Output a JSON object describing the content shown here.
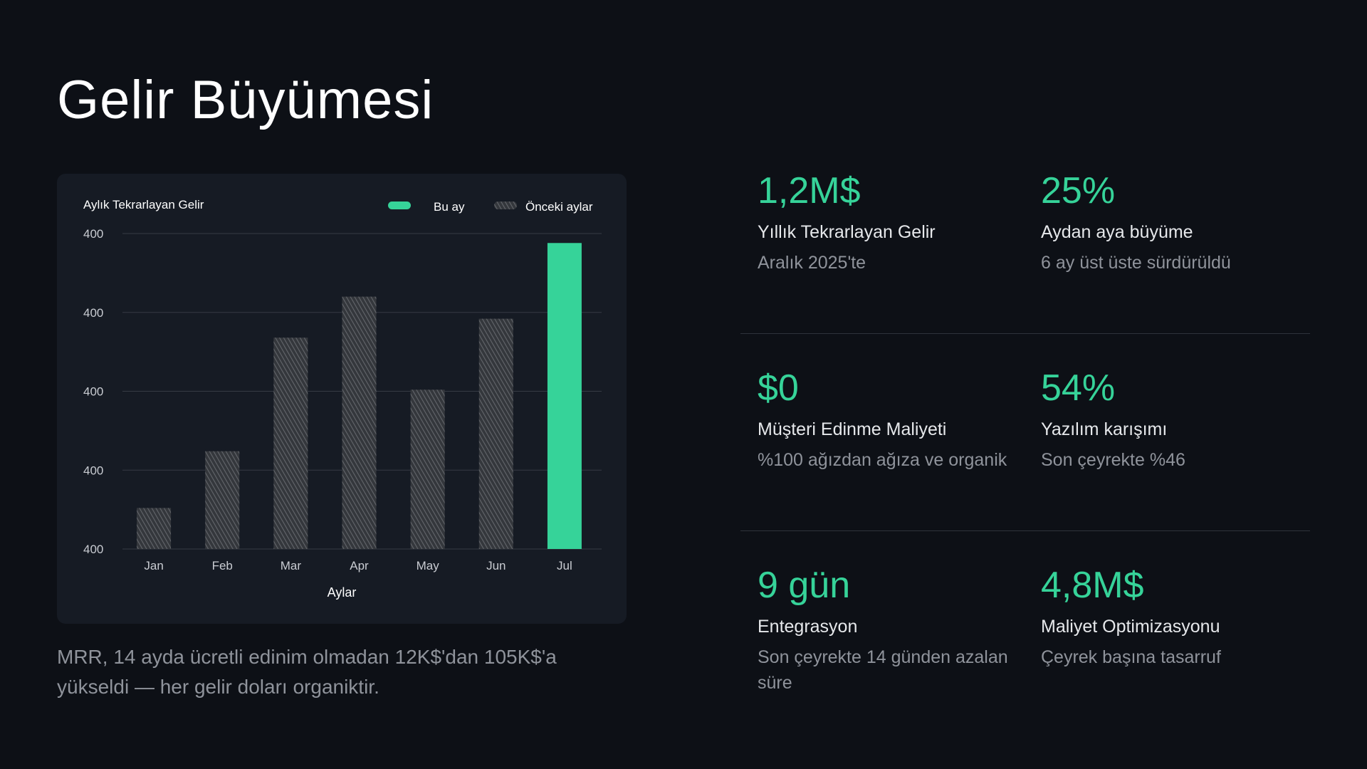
{
  "title": "Gelir Büyümesi",
  "caption": "MRR, 14 ayda ücretli edinim olmadan 12K$'dan 105K$'a yükseldi — her gelir doları organiktir.",
  "colors": {
    "background": "#0d1016",
    "card": "#161b24",
    "accent": "#36d399",
    "hatch": "#5c5f64"
  },
  "chart_data": {
    "type": "bar",
    "title": "Aylık Tekrarlayan Gelir",
    "xlabel": "Aylar",
    "ylabel": "",
    "legend": [
      {
        "label": "Bu ay",
        "style": "solid-accent"
      },
      {
        "label": "Önceki aylar",
        "style": "hatched"
      }
    ],
    "legend_position": "top-right",
    "ytick_labels": [
      "400",
      "400",
      "400",
      "400",
      "400"
    ],
    "categories": [
      "Jan",
      "Feb",
      "Mar",
      "Apr",
      "May",
      "Jun",
      "Jul"
    ],
    "values": [
      13,
      31,
      67,
      80,
      50.5,
      73,
      97
    ],
    "highlight": "Jul",
    "ylim": [
      0,
      100
    ],
    "grid": true
  },
  "metrics": [
    {
      "value": "1,2M$",
      "label": "Yıllık Tekrarlayan Gelir",
      "sub": "Aralık 2025'te"
    },
    {
      "value": "25%",
      "label": "Aydan aya büyüme",
      "sub": "6 ay üst üste sürdürüldü"
    },
    {
      "value": "$0",
      "label": "Müşteri Edinme Maliyeti",
      "sub": "%100 ağızdan ağıza ve organik"
    },
    {
      "value": "54%",
      "label": "Yazılım karışımı",
      "sub": "Son çeyrekte %46"
    },
    {
      "value": "9 gün",
      "label": "Entegrasyon",
      "sub": "Son çeyrekte 14 günden azalan süre"
    },
    {
      "value": "4,8M$",
      "label": "Maliyet Optimizasyonu",
      "sub": "Çeyrek başına tasarruf"
    }
  ]
}
